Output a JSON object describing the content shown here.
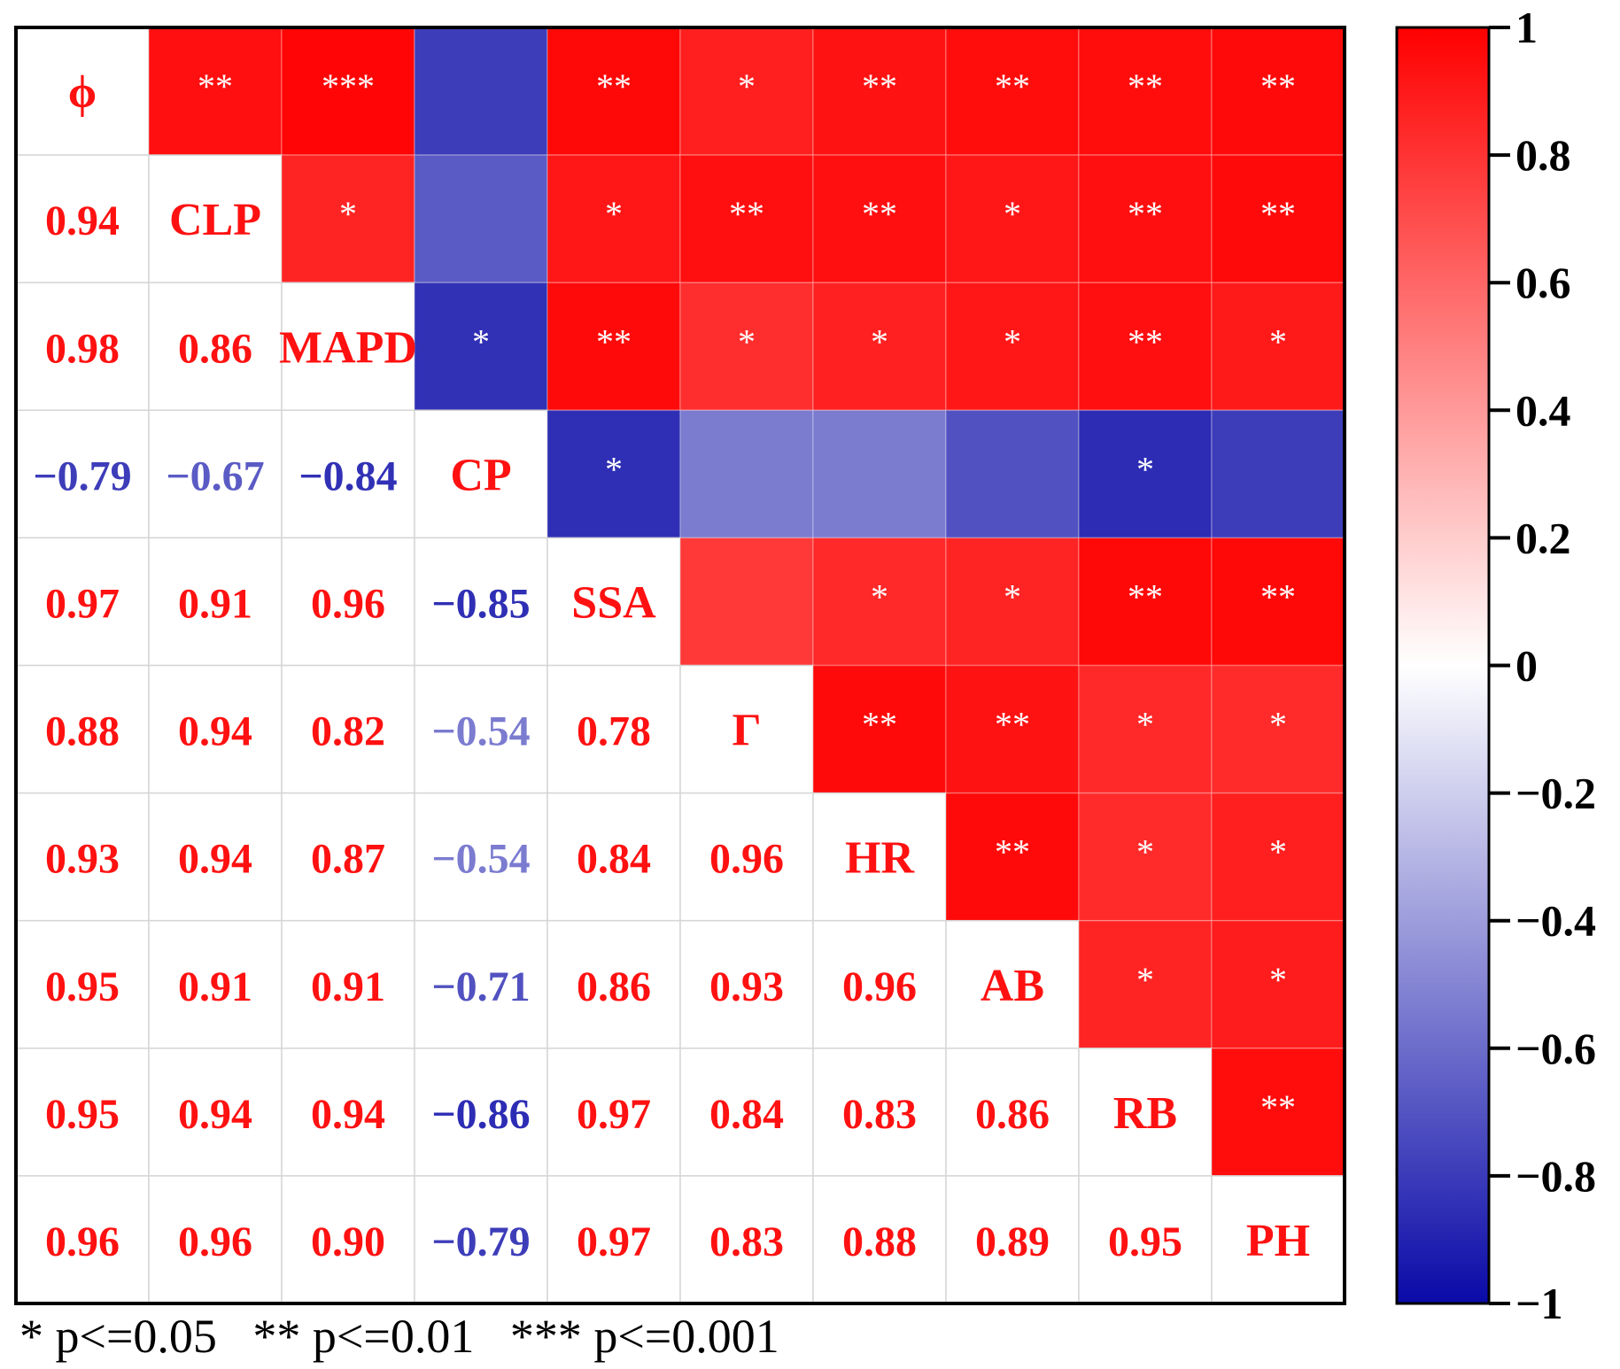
{
  "chart_data": {
    "type": "heatmap",
    "variables": [
      "ϕ",
      "CLP",
      "MAPD",
      "CP",
      "SSA",
      "Γ",
      "HR",
      "AB",
      "RB",
      "PH"
    ],
    "matrix": [
      [
        1,
        0.94,
        0.98,
        -0.79,
        0.97,
        0.88,
        0.93,
        0.95,
        0.95,
        0.96
      ],
      [
        0.94,
        1,
        0.86,
        -0.67,
        0.91,
        0.94,
        0.94,
        0.91,
        0.94,
        0.96
      ],
      [
        0.98,
        0.86,
        1,
        -0.84,
        0.96,
        0.82,
        0.87,
        0.91,
        0.94,
        0.9
      ],
      [
        -0.79,
        -0.67,
        -0.84,
        1,
        -0.85,
        -0.54,
        -0.54,
        -0.71,
        -0.86,
        -0.79
      ],
      [
        0.97,
        0.91,
        0.96,
        -0.85,
        1,
        0.78,
        0.84,
        0.86,
        0.97,
        0.97
      ],
      [
        0.88,
        0.94,
        0.82,
        -0.54,
        0.78,
        1,
        0.96,
        0.93,
        0.84,
        0.83
      ],
      [
        0.93,
        0.94,
        0.87,
        -0.54,
        0.84,
        0.96,
        1,
        0.96,
        0.83,
        0.88
      ],
      [
        0.95,
        0.91,
        0.91,
        -0.71,
        0.86,
        0.93,
        0.96,
        1,
        0.86,
        0.89
      ],
      [
        0.95,
        0.94,
        0.94,
        -0.86,
        0.97,
        0.84,
        0.83,
        0.86,
        1,
        0.95
      ],
      [
        0.96,
        0.96,
        0.9,
        -0.79,
        0.97,
        0.83,
        0.88,
        0.89,
        0.95,
        1
      ]
    ],
    "value_labels": [
      [
        "",
        "",
        "",
        "",
        "",
        "",
        "",
        "",
        "",
        ""
      ],
      [
        "0.94",
        "",
        "",
        "",
        "",
        "",
        "",
        "",
        "",
        ""
      ],
      [
        "0.98",
        "0.86",
        "",
        "",
        "",
        "",
        "",
        "",
        "",
        ""
      ],
      [
        "−0.79",
        "−0.67",
        "−0.84",
        "",
        "",
        "",
        "",
        "",
        "",
        ""
      ],
      [
        "0.97",
        "0.91",
        "0.96",
        "−0.85",
        "",
        "",
        "",
        "",
        "",
        ""
      ],
      [
        "0.88",
        "0.94",
        "0.82",
        "−0.54",
        "0.78",
        "",
        "",
        "",
        "",
        ""
      ],
      [
        "0.93",
        "0.94",
        "0.87",
        "−0.54",
        "0.84",
        "0.96",
        "",
        "",
        "",
        ""
      ],
      [
        "0.95",
        "0.91",
        "0.91",
        "−0.71",
        "0.86",
        "0.93",
        "0.96",
        "",
        "",
        ""
      ],
      [
        "0.95",
        "0.94",
        "0.94",
        "−0.86",
        "0.97",
        "0.84",
        "0.83",
        "0.86",
        "",
        ""
      ],
      [
        "0.96",
        "0.96",
        "0.90",
        "−0.79",
        "0.97",
        "0.83",
        "0.88",
        "0.89",
        "0.95",
        ""
      ]
    ],
    "significance": [
      [
        "",
        "**",
        "***",
        "",
        "**",
        "*",
        "**",
        "**",
        "**",
        "**"
      ],
      [
        "",
        "",
        "*",
        "",
        "*",
        "**",
        "**",
        "*",
        "**",
        "**"
      ],
      [
        "",
        "",
        "",
        "*",
        "**",
        "*",
        "*",
        "*",
        "**",
        "*"
      ],
      [
        "",
        "",
        "",
        "",
        "*",
        "",
        "",
        "",
        "*",
        ""
      ],
      [
        "",
        "",
        "",
        "",
        "",
        "",
        "*",
        "*",
        "**",
        "**"
      ],
      [
        "",
        "",
        "",
        "",
        "",
        "",
        "**",
        "**",
        "*",
        "*"
      ],
      [
        "",
        "",
        "",
        "",
        "",
        "",
        "",
        "**",
        "*",
        "*"
      ],
      [
        "",
        "",
        "",
        "",
        "",
        "",
        "",
        "",
        "*",
        "*"
      ],
      [
        "",
        "",
        "",
        "",
        "",
        "",
        "",
        "",
        "",
        "**"
      ],
      [
        "",
        "",
        "",
        "",
        "",
        "",
        "",
        "",
        "",
        ""
      ]
    ],
    "layout": "upper triangle: colored cells with significance stars; lower triangle: correlation values; diagonal: variable names",
    "colorbar": {
      "range": [
        -1,
        1
      ],
      "ticks": [
        "1",
        "0.8",
        "0.6",
        "0.4",
        "0.2",
        "0",
        "−0.2",
        "−0.4",
        "−0.6",
        "−0.8",
        "−1"
      ],
      "tick_values": [
        1,
        0.8,
        0.6,
        0.4,
        0.2,
        0,
        -0.2,
        -0.4,
        -0.6,
        -0.8,
        -1
      ],
      "low_color": "#0a0aa8",
      "mid_color": "#ffffff",
      "high_color": "#ff0000"
    },
    "footnote": "* p<=0.05   ** p<=0.01   *** p<=0.001",
    "grid": true
  }
}
